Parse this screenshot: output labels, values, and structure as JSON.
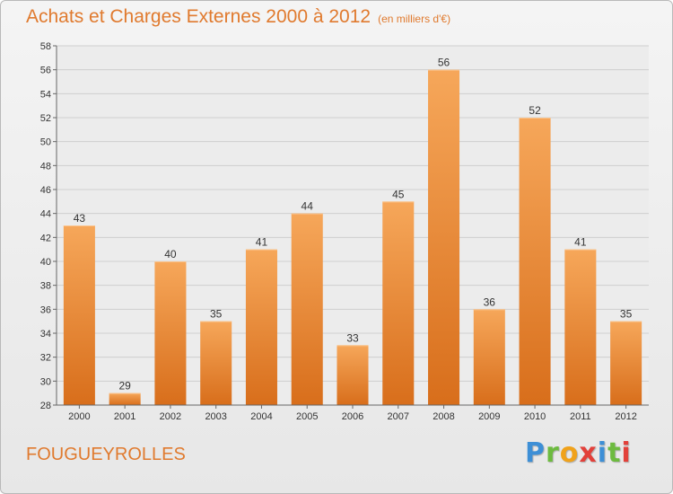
{
  "header": {
    "title": "Achats et Charges Externes 2000 à 2012",
    "subtitle": "(en milliers d'€)"
  },
  "footer": {
    "commune": "FOUGUEYROLLES",
    "logo_letters": [
      "P",
      "r",
      "o",
      "x",
      "i",
      "t",
      "i"
    ]
  },
  "colors": {
    "bar_top": "#f6a75a",
    "bar_bottom": "#d86e1b",
    "text_accent": "#e07a2e"
  },
  "chart_data": {
    "type": "bar",
    "title": "Achats et Charges Externes 2000 à 2012",
    "categories": [
      "2000",
      "2001",
      "2002",
      "2003",
      "2004",
      "2005",
      "2006",
      "2007",
      "2008",
      "2009",
      "2010",
      "2011",
      "2012"
    ],
    "values": [
      43,
      29,
      40,
      35,
      41,
      44,
      33,
      45,
      56,
      36,
      52,
      41,
      35
    ],
    "ylim": [
      28,
      58
    ],
    "yticks": [
      28,
      30,
      32,
      34,
      36,
      38,
      40,
      42,
      44,
      46,
      48,
      50,
      52,
      54,
      56,
      58
    ],
    "grid": true,
    "xlabel": "",
    "ylabel": ""
  }
}
